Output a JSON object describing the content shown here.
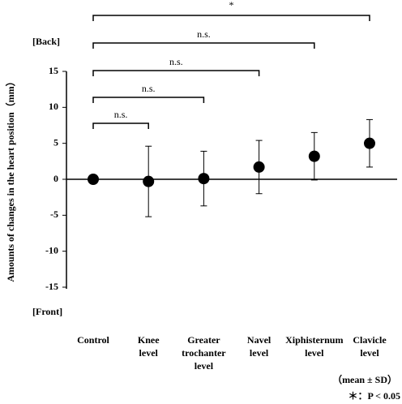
{
  "chart_data": {
    "type": "errorbar",
    "y_label": "Amounts of changes in the heart position（mm）",
    "top_label": "[Back]",
    "bottom_label": "[Front]",
    "categories": [
      "Control",
      "Knee level",
      "Greater trochanter level",
      "Navel level",
      "Xiphisternum level",
      "Clavicle level"
    ],
    "series": [
      {
        "name": "mean",
        "color": "#000000",
        "values": [
          0,
          -0.3,
          0.1,
          1.7,
          3.2,
          5.0
        ],
        "errors": [
          0,
          4.9,
          3.8,
          3.7,
          3.3,
          3.3
        ]
      }
    ],
    "ylim": [
      -15,
      15
    ],
    "yticks": [
      -15,
      -10,
      -5,
      0,
      5,
      10,
      15
    ],
    "brackets": [
      "n.s.",
      "n.s.",
      "n.s.",
      "n.s.",
      "*"
    ],
    "notes": [
      "（mean ± SD）",
      "＊：P < 0.05"
    ]
  }
}
